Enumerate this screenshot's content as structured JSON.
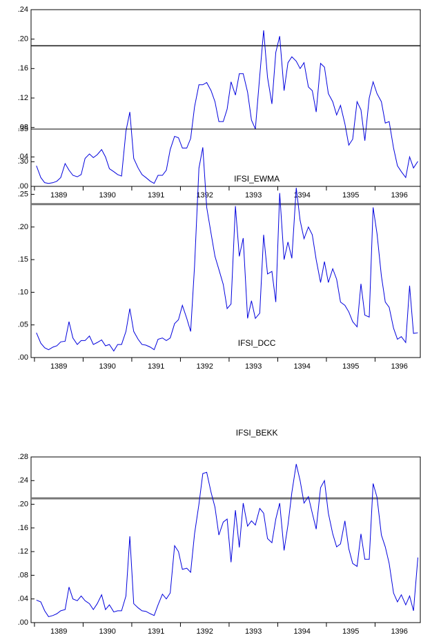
{
  "chart_data": [
    {
      "type": "line",
      "title": "IFSI_EWMA",
      "color": "#0000dd",
      "x": [
        1389.04,
        1389.13,
        1389.21,
        1389.29,
        1389.38,
        1389.46,
        1389.54,
        1389.63,
        1389.71,
        1389.79,
        1389.88,
        1389.96,
        1390.04,
        1390.13,
        1390.21,
        1390.29,
        1390.38,
        1390.46,
        1390.54,
        1390.63,
        1390.71,
        1390.79,
        1390.88,
        1390.96,
        1391.04,
        1391.13,
        1391.21,
        1391.29,
        1391.38,
        1391.46,
        1391.54,
        1391.63,
        1391.71,
        1391.79,
        1391.88,
        1391.96,
        1392.04,
        1392.13,
        1392.21,
        1392.29,
        1392.38,
        1392.46,
        1392.54,
        1392.63,
        1392.71,
        1392.79,
        1392.88,
        1392.96,
        1393.04,
        1393.13,
        1393.21,
        1393.29,
        1393.38,
        1393.46,
        1393.54,
        1393.63,
        1393.71,
        1393.79,
        1393.88,
        1393.96,
        1394.04,
        1394.13,
        1394.21,
        1394.29,
        1394.38,
        1394.46,
        1394.54,
        1394.63,
        1394.71,
        1394.79,
        1394.88,
        1394.96,
        1395.04,
        1395.13,
        1395.21,
        1395.29,
        1395.38,
        1395.46,
        1395.54,
        1395.63,
        1395.71,
        1395.79,
        1395.88,
        1395.96,
        1396.04,
        1396.13,
        1396.21,
        1396.29,
        1396.38,
        1396.46,
        1396.54,
        1396.63,
        1396.71,
        1396.79,
        1396.88
      ],
      "values": [
        0.028,
        0.012,
        0.005,
        0.004,
        0.005,
        0.007,
        0.012,
        0.031,
        0.022,
        0.015,
        0.013,
        0.016,
        0.038,
        0.044,
        0.039,
        0.043,
        0.05,
        0.04,
        0.024,
        0.02,
        0.016,
        0.014,
        0.075,
        0.101,
        0.038,
        0.025,
        0.016,
        0.012,
        0.007,
        0.004,
        0.015,
        0.015,
        0.022,
        0.05,
        0.068,
        0.066,
        0.052,
        0.052,
        0.065,
        0.108,
        0.138,
        0.138,
        0.141,
        0.13,
        0.115,
        0.088,
        0.088,
        0.105,
        0.142,
        0.124,
        0.153,
        0.153,
        0.128,
        0.09,
        0.078,
        0.15,
        0.212,
        0.148,
        0.112,
        0.182,
        0.204,
        0.13,
        0.168,
        0.176,
        0.17,
        0.16,
        0.168,
        0.135,
        0.13,
        0.101,
        0.167,
        0.162,
        0.126,
        0.115,
        0.097,
        0.11,
        0.085,
        0.056,
        0.064,
        0.115,
        0.104,
        0.062,
        0.12,
        0.142,
        0.126,
        0.115,
        0.086,
        0.088,
        0.052,
        0.028,
        0.02,
        0.012,
        0.04,
        0.025,
        0.034
      ],
      "xlim": [
        1388.93,
        1396.93
      ],
      "xticks": [
        1389,
        1390,
        1391,
        1392,
        1393,
        1394,
        1395,
        1396
      ],
      "ylim": [
        0,
        0.24
      ],
      "yticks": [
        {
          "value": 0,
          "label": ".00"
        },
        {
          "value": 0.04,
          "label": ".04"
        },
        {
          "value": 0.08,
          "label": ".08"
        },
        {
          "value": 0.12,
          "label": ".12"
        },
        {
          "value": 0.16,
          "label": ".16"
        },
        {
          "value": 0.2,
          "label": ".20"
        },
        {
          "value": 0.24,
          "label": ".24"
        }
      ],
      "reference_line": {
        "value": 0.191,
        "color": "#222222"
      }
    },
    {
      "type": "line",
      "title": "IFSI_DCC",
      "color": "#0000dd",
      "x": [
        1389.04,
        1389.13,
        1389.21,
        1389.29,
        1389.38,
        1389.46,
        1389.54,
        1389.63,
        1389.71,
        1389.79,
        1389.88,
        1389.96,
        1390.04,
        1390.13,
        1390.21,
        1390.29,
        1390.38,
        1390.46,
        1390.54,
        1390.63,
        1390.71,
        1390.79,
        1390.88,
        1390.96,
        1391.04,
        1391.13,
        1391.21,
        1391.29,
        1391.38,
        1391.46,
        1391.54,
        1391.63,
        1391.71,
        1391.79,
        1391.88,
        1391.96,
        1392.04,
        1392.13,
        1392.21,
        1392.29,
        1392.38,
        1392.46,
        1392.54,
        1392.63,
        1392.71,
        1392.79,
        1392.88,
        1392.96,
        1393.04,
        1393.13,
        1393.21,
        1393.29,
        1393.38,
        1393.46,
        1393.54,
        1393.63,
        1393.71,
        1393.79,
        1393.88,
        1393.96,
        1394.04,
        1394.13,
        1394.21,
        1394.29,
        1394.38,
        1394.46,
        1394.54,
        1394.63,
        1394.71,
        1394.79,
        1394.88,
        1394.96,
        1395.04,
        1395.13,
        1395.21,
        1395.29,
        1395.38,
        1395.46,
        1395.54,
        1395.63,
        1395.71,
        1395.79,
        1395.88,
        1395.96,
        1396.04,
        1396.13,
        1396.21,
        1396.29,
        1396.38,
        1396.46,
        1396.54,
        1396.63,
        1396.71,
        1396.79,
        1396.88
      ],
      "values": [
        0.038,
        0.022,
        0.015,
        0.012,
        0.016,
        0.018,
        0.024,
        0.025,
        0.055,
        0.03,
        0.02,
        0.026,
        0.026,
        0.033,
        0.02,
        0.023,
        0.027,
        0.018,
        0.02,
        0.01,
        0.02,
        0.02,
        0.04,
        0.075,
        0.04,
        0.028,
        0.02,
        0.019,
        0.016,
        0.012,
        0.028,
        0.03,
        0.026,
        0.03,
        0.052,
        0.058,
        0.08,
        0.06,
        0.04,
        0.14,
        0.29,
        0.322,
        0.23,
        0.19,
        0.155,
        0.135,
        0.112,
        0.075,
        0.082,
        0.232,
        0.155,
        0.183,
        0.06,
        0.087,
        0.06,
        0.068,
        0.188,
        0.128,
        0.132,
        0.085,
        0.252,
        0.15,
        0.177,
        0.152,
        0.26,
        0.21,
        0.182,
        0.2,
        0.188,
        0.15,
        0.115,
        0.147,
        0.115,
        0.136,
        0.12,
        0.085,
        0.08,
        0.07,
        0.055,
        0.047,
        0.113,
        0.065,
        0.062,
        0.23,
        0.19,
        0.125,
        0.085,
        0.077,
        0.045,
        0.028,
        0.032,
        0.023,
        0.11,
        0.037,
        0.038
      ],
      "xlim": [
        1388.93,
        1396.93
      ],
      "xticks": [
        1389,
        1390,
        1391,
        1392,
        1393,
        1394,
        1395,
        1396
      ],
      "ylim": [
        0,
        0.35
      ],
      "yticks": [
        {
          "value": 0,
          "label": ".00"
        },
        {
          "value": 0.05,
          "label": ".05"
        },
        {
          "value": 0.1,
          "label": ".10"
        },
        {
          "value": 0.15,
          "label": ".15"
        },
        {
          "value": 0.2,
          "label": ".20"
        },
        {
          "value": 0.25,
          "label": ".25"
        },
        {
          "value": 0.3,
          "label": ".30"
        },
        {
          "value": 0.35,
          "label": ".35"
        }
      ],
      "reference_line": {
        "value": 0.235,
        "color": "#777777"
      }
    },
    {
      "type": "line",
      "title": "IFSI_BEKK",
      "color": "#0000dd",
      "x": [
        1389.04,
        1389.13,
        1389.21,
        1389.29,
        1389.38,
        1389.46,
        1389.54,
        1389.63,
        1389.71,
        1389.79,
        1389.88,
        1389.96,
        1390.04,
        1390.13,
        1390.21,
        1390.29,
        1390.38,
        1390.46,
        1390.54,
        1390.63,
        1390.71,
        1390.79,
        1390.88,
        1390.96,
        1391.04,
        1391.13,
        1391.21,
        1391.29,
        1391.38,
        1391.46,
        1391.54,
        1391.63,
        1391.71,
        1391.79,
        1391.88,
        1391.96,
        1392.04,
        1392.13,
        1392.21,
        1392.29,
        1392.38,
        1392.46,
        1392.54,
        1392.63,
        1392.71,
        1392.79,
        1392.88,
        1392.96,
        1393.04,
        1393.13,
        1393.21,
        1393.29,
        1393.38,
        1393.46,
        1393.54,
        1393.63,
        1393.71,
        1393.79,
        1393.88,
        1393.96,
        1394.04,
        1394.13,
        1394.21,
        1394.29,
        1394.38,
        1394.46,
        1394.54,
        1394.63,
        1394.71,
        1394.79,
        1394.88,
        1394.96,
        1395.04,
        1395.13,
        1395.21,
        1395.29,
        1395.38,
        1395.46,
        1395.54,
        1395.63,
        1395.71,
        1395.79,
        1395.88,
        1395.96,
        1396.04,
        1396.13,
        1396.21,
        1396.29,
        1396.38,
        1396.46,
        1396.54,
        1396.63,
        1396.71,
        1396.79,
        1396.88
      ],
      "values": [
        0.038,
        0.035,
        0.02,
        0.01,
        0.012,
        0.015,
        0.02,
        0.022,
        0.06,
        0.04,
        0.037,
        0.045,
        0.037,
        0.032,
        0.022,
        0.032,
        0.047,
        0.022,
        0.03,
        0.018,
        0.02,
        0.02,
        0.045,
        0.146,
        0.032,
        0.025,
        0.02,
        0.019,
        0.015,
        0.012,
        0.03,
        0.048,
        0.04,
        0.05,
        0.13,
        0.12,
        0.09,
        0.092,
        0.085,
        0.15,
        0.2,
        0.252,
        0.254,
        0.22,
        0.195,
        0.148,
        0.17,
        0.175,
        0.102,
        0.19,
        0.127,
        0.202,
        0.163,
        0.172,
        0.165,
        0.193,
        0.185,
        0.142,
        0.135,
        0.175,
        0.202,
        0.122,
        0.165,
        0.22,
        0.268,
        0.24,
        0.202,
        0.213,
        0.185,
        0.158,
        0.228,
        0.24,
        0.185,
        0.15,
        0.128,
        0.133,
        0.172,
        0.125,
        0.1,
        0.095,
        0.15,
        0.107,
        0.107,
        0.235,
        0.212,
        0.148,
        0.128,
        0.1,
        0.05,
        0.035,
        0.047,
        0.03,
        0.045,
        0.02,
        0.11
      ],
      "xlim": [
        1388.93,
        1396.93
      ],
      "xticks": [
        1389,
        1390,
        1391,
        1392,
        1393,
        1394,
        1395,
        1396
      ],
      "ylim": [
        0,
        0.28
      ],
      "yticks": [
        {
          "value": 0,
          "label": ".00"
        },
        {
          "value": 0.04,
          "label": ".04"
        },
        {
          "value": 0.08,
          "label": ".08"
        },
        {
          "value": 0.12,
          "label": ".12"
        },
        {
          "value": 0.16,
          "label": ".16"
        },
        {
          "value": 0.2,
          "label": ".20"
        },
        {
          "value": 0.24,
          "label": ".24"
        },
        {
          "value": 0.28,
          "label": ".28"
        }
      ],
      "reference_line": {
        "value": 0.21,
        "color": "#777777"
      }
    }
  ]
}
